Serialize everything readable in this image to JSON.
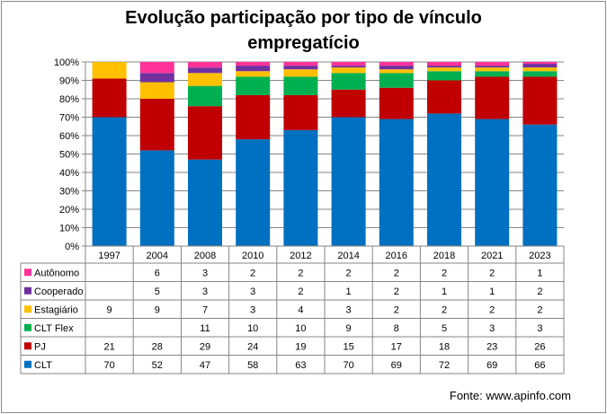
{
  "chart_data": {
    "type": "bar",
    "stacked": true,
    "title_lines": [
      "Evolução participação por tipo de vínculo",
      "empregatício"
    ],
    "categories": [
      "1997",
      "2004",
      "2008",
      "2010",
      "2012",
      "2014",
      "2016",
      "2018",
      "2021",
      "2023"
    ],
    "ylim": [
      0,
      100
    ],
    "yticks": [
      "0%",
      "10%",
      "20%",
      "30%",
      "40%",
      "50%",
      "60%",
      "70%",
      "80%",
      "90%",
      "100%"
    ],
    "grid": true,
    "legend_placement": "data-table",
    "series": [
      {
        "name": "CLT",
        "color": "#0070c0",
        "values": [
          70,
          52,
          47,
          58,
          63,
          70,
          69,
          72,
          69,
          66
        ]
      },
      {
        "name": "PJ",
        "color": "#c00000",
        "values": [
          21,
          28,
          29,
          24,
          19,
          15,
          17,
          18,
          23,
          26
        ]
      },
      {
        "name": "CLT Flex",
        "color": "#00b050",
        "values": [
          null,
          null,
          11,
          10,
          10,
          9,
          8,
          5,
          3,
          3
        ]
      },
      {
        "name": "Estagiário",
        "color": "#ffc000",
        "values": [
          9,
          9,
          7,
          3,
          4,
          3,
          2,
          2,
          2,
          2
        ]
      },
      {
        "name": "Cooperado",
        "color": "#7030a0",
        "values": [
          null,
          5,
          3,
          3,
          2,
          1,
          2,
          1,
          1,
          2
        ]
      },
      {
        "name": "Autônomo",
        "color": "#ff3399",
        "values": [
          null,
          6,
          3,
          2,
          2,
          2,
          2,
          2,
          2,
          1
        ]
      }
    ],
    "table_row_order": [
      "Autônomo",
      "Cooperado",
      "Estagiário",
      "CLT Flex",
      "PJ",
      "CLT"
    ]
  },
  "source_note": "Fonte: www.apinfo.com"
}
